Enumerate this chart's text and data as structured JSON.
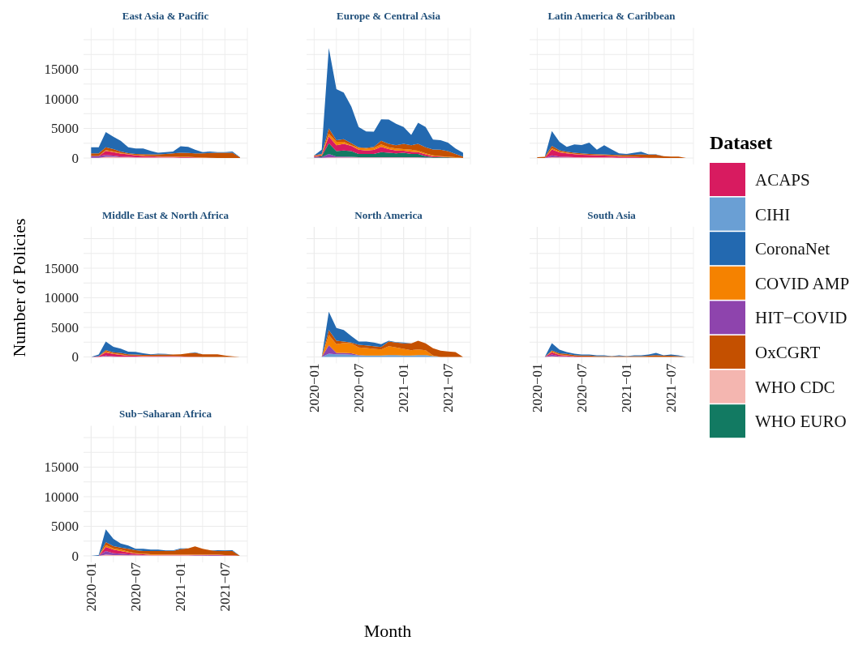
{
  "chart_data": [
    {
      "type": "area",
      "stacked": true,
      "title": "East Asia & Pacific",
      "legend": "right",
      "legend_title": "Dataset",
      "grid": true,
      "tick_labels": "y",
      "x": [
        "2020-01",
        "2020-02",
        "2020-03",
        "2020-04",
        "2020-05",
        "2020-06",
        "2020-07",
        "2020-08",
        "2020-09",
        "2020-10",
        "2020-11",
        "2020-12",
        "2021-01",
        "2021-02",
        "2021-03",
        "2021-04",
        "2021-05",
        "2021-06",
        "2021-07",
        "2021-08",
        "2021-09"
      ],
      "xlim": [
        "2019-12",
        "2021-10"
      ],
      "xticks": [
        {
          "value": "2020-01",
          "label": null
        },
        {
          "value": "2020-04",
          "label": null
        },
        {
          "value": "2020-07",
          "label": null
        },
        {
          "value": "2020-10",
          "label": null
        },
        {
          "value": "2021-01",
          "label": null
        },
        {
          "value": "2021-04",
          "label": null
        },
        {
          "value": "2021-07",
          "label": null
        },
        {
          "value": "2021-10",
          "label": null
        }
      ],
      "ylim": [
        0,
        22000
      ],
      "yticks": [
        0,
        {
          "value": 2500,
          "label": null
        },
        5000,
        {
          "value": 7500,
          "label": null
        },
        10000,
        {
          "value": 12500,
          "label": null
        },
        15000,
        {
          "value": 17500,
          "label": null
        },
        {
          "value": 20000,
          "label": null
        }
      ],
      "series": [
        {
          "name": "WHO CDC",
          "color": "#f4b6b0",
          "values": [
            50,
            50,
            200,
            200,
            150,
            150,
            100,
            100,
            100,
            100,
            100,
            100,
            50,
            50,
            50,
            0,
            0,
            0,
            0,
            0,
            0
          ]
        },
        {
          "name": "HIT−COVID",
          "color": "#8e44ad",
          "values": [
            300,
            300,
            300,
            200,
            100,
            50,
            50,
            0,
            0,
            0,
            0,
            0,
            0,
            0,
            0,
            0,
            0,
            0,
            0,
            0,
            0
          ]
        },
        {
          "name": "ACAPS",
          "color": "#d81b60",
          "values": [
            0,
            0,
            700,
            600,
            500,
            400,
            300,
            250,
            200,
            150,
            100,
            100,
            100,
            100,
            50,
            50,
            50,
            0,
            0,
            0,
            0
          ]
        },
        {
          "name": "COVID AMP",
          "color": "#f58200",
          "values": [
            0,
            0,
            150,
            100,
            100,
            80,
            80,
            80,
            50,
            50,
            50,
            50,
            50,
            50,
            50,
            50,
            0,
            0,
            0,
            0,
            0
          ]
        },
        {
          "name": "OxCGRT",
          "color": "#c45000",
          "values": [
            430,
            430,
            450,
            400,
            250,
            150,
            170,
            220,
            250,
            300,
            450,
            550,
            700,
            650,
            650,
            700,
            800,
            900,
            900,
            900,
            100
          ]
        },
        {
          "name": "CoronaNet",
          "color": "#2369b0",
          "values": [
            1050,
            1050,
            2600,
            2100,
            1800,
            1000,
            900,
            950,
            600,
            300,
            300,
            300,
            1100,
            1050,
            600,
            200,
            250,
            100,
            100,
            200,
            50
          ]
        }
      ]
    },
    {
      "type": "area",
      "stacked": true,
      "title": "Europe & Central Asia",
      "grid": true,
      "tick_labels": false,
      "x": [
        "2020-01",
        "2020-02",
        "2020-03",
        "2020-04",
        "2020-05",
        "2020-06",
        "2020-07",
        "2020-08",
        "2020-09",
        "2020-10",
        "2020-11",
        "2020-12",
        "2021-01",
        "2021-02",
        "2021-03",
        "2021-04",
        "2021-05",
        "2021-06",
        "2021-07",
        "2021-08",
        "2021-09"
      ],
      "xlim": [
        "2019-12",
        "2021-10"
      ],
      "xticks": [
        {
          "value": "2020-01",
          "label": null
        },
        {
          "value": "2020-04",
          "label": null
        },
        {
          "value": "2020-07",
          "label": null
        },
        {
          "value": "2020-10",
          "label": null
        },
        {
          "value": "2021-01",
          "label": null
        },
        {
          "value": "2021-04",
          "label": null
        },
        {
          "value": "2021-07",
          "label": null
        },
        {
          "value": "2021-10",
          "label": null
        }
      ],
      "ylim": [
        0,
        22000
      ],
      "yticks": [
        {
          "value": 0,
          "label": null
        },
        {
          "value": 2500,
          "label": null
        },
        {
          "value": 5000,
          "label": null
        },
        {
          "value": 7500,
          "label": null
        },
        {
          "value": 10000,
          "label": null
        },
        {
          "value": 12500,
          "label": null
        },
        {
          "value": 15000,
          "label": null
        },
        {
          "value": 17500,
          "label": null
        },
        {
          "value": 20000,
          "label": null
        }
      ],
      "series": [
        {
          "name": "WHO CDC",
          "color": "#f4b6b0",
          "values": [
            50,
            50,
            100,
            100,
            100,
            100,
            100,
            100,
            100,
            100,
            100,
            100,
            100,
            100,
            100,
            50,
            50,
            50,
            0,
            0,
            0
          ]
        },
        {
          "name": "HIT−COVID",
          "color": "#8e44ad",
          "values": [
            50,
            100,
            600,
            150,
            130,
            100,
            50,
            50,
            50,
            50,
            50,
            50,
            50,
            50,
            50,
            50,
            0,
            0,
            0,
            0,
            0
          ]
        },
        {
          "name": "WHO EURO",
          "color": "#127a62",
          "values": [
            50,
            150,
            1800,
            900,
            1050,
            950,
            540,
            540,
            540,
            850,
            750,
            630,
            750,
            540,
            540,
            220,
            90,
            90,
            100,
            50,
            0
          ]
        },
        {
          "name": "ACAPS",
          "color": "#d81b60",
          "values": [
            150,
            150,
            1150,
            1000,
            1120,
            900,
            710,
            590,
            680,
            900,
            600,
            500,
            330,
            360,
            310,
            280,
            180,
            90,
            40,
            0,
            0
          ]
        },
        {
          "name": "COVID AMP",
          "color": "#f58200",
          "values": [
            0,
            150,
            450,
            600,
            350,
            100,
            300,
            320,
            330,
            400,
            300,
            320,
            270,
            350,
            250,
            180,
            130,
            90,
            90,
            90,
            0
          ]
        },
        {
          "name": "OxCGRT",
          "color": "#c45000",
          "values": [
            150,
            100,
            900,
            250,
            450,
            350,
            100,
            100,
            200,
            600,
            600,
            550,
            900,
            750,
            1150,
            1020,
            1000,
            1080,
            920,
            560,
            230
          ]
        },
        {
          "name": "CoronaNet",
          "color": "#2369b0",
          "values": [
            0,
            700,
            13600,
            8650,
            7850,
            6200,
            3450,
            2800,
            2550,
            3650,
            4100,
            3650,
            2850,
            1750,
            3550,
            3450,
            1650,
            1600,
            1450,
            900,
            670
          ]
        }
      ]
    },
    {
      "type": "area",
      "stacked": true,
      "title": "Latin America & Caribbean",
      "grid": true,
      "tick_labels": false,
      "x": [
        "2020-01",
        "2020-02",
        "2020-03",
        "2020-04",
        "2020-05",
        "2020-06",
        "2020-07",
        "2020-08",
        "2020-09",
        "2020-10",
        "2020-11",
        "2020-12",
        "2021-01",
        "2021-02",
        "2021-03",
        "2021-04",
        "2021-05",
        "2021-06",
        "2021-07",
        "2021-08",
        "2021-09"
      ],
      "xlim": [
        "2019-12",
        "2021-10"
      ],
      "xticks": [
        {
          "value": "2020-01",
          "label": null
        },
        {
          "value": "2020-04",
          "label": null
        },
        {
          "value": "2020-07",
          "label": null
        },
        {
          "value": "2020-10",
          "label": null
        },
        {
          "value": "2021-01",
          "label": null
        },
        {
          "value": "2021-04",
          "label": null
        },
        {
          "value": "2021-07",
          "label": null
        },
        {
          "value": "2021-10",
          "label": null
        }
      ],
      "ylim": [
        0,
        22000
      ],
      "yticks": [
        {
          "value": 0,
          "label": null
        },
        {
          "value": 2500,
          "label": null
        },
        {
          "value": 5000,
          "label": null
        },
        {
          "value": 7500,
          "label": null
        },
        {
          "value": 10000,
          "label": null
        },
        {
          "value": 12500,
          "label": null
        },
        {
          "value": 15000,
          "label": null
        },
        {
          "value": 17500,
          "label": null
        },
        {
          "value": 20000,
          "label": null
        }
      ],
      "series": [
        {
          "name": "WHO CDC",
          "color": "#f4b6b0",
          "values": [
            0,
            0,
            150,
            100,
            100,
            100,
            100,
            100,
            100,
            100,
            100,
            50,
            50,
            50,
            50,
            0,
            0,
            0,
            0,
            0,
            0
          ]
        },
        {
          "name": "HIT−COVID",
          "color": "#8e44ad",
          "values": [
            0,
            0,
            300,
            150,
            100,
            50,
            0,
            0,
            0,
            0,
            0,
            0,
            0,
            0,
            0,
            0,
            0,
            0,
            0,
            0,
            0
          ]
        },
        {
          "name": "ACAPS",
          "color": "#d81b60",
          "values": [
            0,
            0,
            1000,
            700,
            600,
            500,
            450,
            400,
            350,
            300,
            250,
            200,
            150,
            150,
            100,
            50,
            50,
            0,
            0,
            0,
            0
          ]
        },
        {
          "name": "COVID AMP",
          "color": "#f58200",
          "values": [
            0,
            0,
            200,
            150,
            100,
            80,
            80,
            50,
            50,
            50,
            50,
            50,
            50,
            0,
            0,
            0,
            0,
            0,
            0,
            0,
            0
          ]
        },
        {
          "name": "OxCGRT",
          "color": "#c45000",
          "values": [
            140,
            200,
            400,
            200,
            150,
            150,
            150,
            150,
            150,
            150,
            150,
            200,
            250,
            350,
            450,
            500,
            500,
            320,
            230,
            230,
            0
          ]
        },
        {
          "name": "CoronaNet",
          "color": "#2369b0",
          "values": [
            0,
            0,
            2500,
            1450,
            850,
            1400,
            1400,
            1900,
            750,
            1550,
            900,
            300,
            200,
            350,
            450,
            50,
            50,
            0,
            0,
            0,
            0
          ]
        }
      ]
    },
    {
      "type": "area",
      "stacked": true,
      "title": "Middle East & North Africa",
      "ylabel": "Number of Policies",
      "grid": true,
      "tick_labels": "y",
      "x": [
        "2020-01",
        "2020-02",
        "2020-03",
        "2020-04",
        "2020-05",
        "2020-06",
        "2020-07",
        "2020-08",
        "2020-09",
        "2020-10",
        "2020-11",
        "2020-12",
        "2021-01",
        "2021-02",
        "2021-03",
        "2021-04",
        "2021-05",
        "2021-06",
        "2021-07",
        "2021-08",
        "2021-09"
      ],
      "xlim": [
        "2019-12",
        "2021-10"
      ],
      "xticks": [
        {
          "value": "2020-01",
          "label": null
        },
        {
          "value": "2020-04",
          "label": null
        },
        {
          "value": "2020-07",
          "label": null
        },
        {
          "value": "2020-10",
          "label": null
        },
        {
          "value": "2021-01",
          "label": null
        },
        {
          "value": "2021-04",
          "label": null
        },
        {
          "value": "2021-07",
          "label": null
        },
        {
          "value": "2021-10",
          "label": null
        }
      ],
      "ylim": [
        0,
        22000
      ],
      "yticks": [
        0,
        {
          "value": 2500,
          "label": null
        },
        5000,
        {
          "value": 7500,
          "label": null
        },
        10000,
        {
          "value": 12500,
          "label": null
        },
        15000,
        {
          "value": 17500,
          "label": null
        },
        {
          "value": 20000,
          "label": null
        }
      ],
      "series": [
        {
          "name": "WHO CDC",
          "color": "#f4b6b0",
          "values": [
            0,
            0,
            100,
            50,
            50,
            50,
            50,
            50,
            50,
            50,
            50,
            50,
            50,
            0,
            0,
            0,
            0,
            0,
            0,
            0,
            0
          ]
        },
        {
          "name": "HIT−COVID",
          "color": "#8e44ad",
          "values": [
            0,
            0,
            150,
            50,
            0,
            0,
            0,
            0,
            0,
            0,
            0,
            0,
            0,
            0,
            0,
            0,
            0,
            0,
            0,
            0,
            0
          ]
        },
        {
          "name": "ACAPS",
          "color": "#d81b60",
          "values": [
            0,
            100,
            500,
            400,
            300,
            150,
            150,
            100,
            100,
            100,
            100,
            100,
            50,
            50,
            50,
            0,
            0,
            0,
            0,
            0,
            0
          ]
        },
        {
          "name": "COVID AMP",
          "color": "#f58200",
          "values": [
            0,
            0,
            200,
            100,
            100,
            50,
            50,
            50,
            0,
            0,
            0,
            0,
            0,
            0,
            0,
            0,
            0,
            0,
            0,
            0,
            0
          ]
        },
        {
          "name": "OxCGRT",
          "color": "#c45000",
          "values": [
            0,
            50,
            200,
            200,
            250,
            200,
            150,
            150,
            200,
            250,
            250,
            250,
            350,
            550,
            650,
            450,
            450,
            450,
            230,
            90,
            0
          ]
        },
        {
          "name": "CoronaNet",
          "color": "#2369b0",
          "values": [
            0,
            270,
            1450,
            900,
            700,
            450,
            450,
            250,
            100,
            150,
            100,
            0,
            0,
            0,
            100,
            0,
            0,
            0,
            0,
            0,
            0
          ]
        }
      ]
    },
    {
      "type": "area",
      "stacked": true,
      "title": "North America",
      "xlabel": "Month",
      "grid": true,
      "tick_labels": "x",
      "x": [
        "2020-01",
        "2020-02",
        "2020-03",
        "2020-04",
        "2020-05",
        "2020-06",
        "2020-07",
        "2020-08",
        "2020-09",
        "2020-10",
        "2020-11",
        "2020-12",
        "2021-01",
        "2021-02",
        "2021-03",
        "2021-04",
        "2021-05",
        "2021-06",
        "2021-07",
        "2021-08",
        "2021-09"
      ],
      "xlim": [
        "2019-12",
        "2021-10"
      ],
      "xticks": [
        {
          "value": "2020-01",
          "label": "2020−01"
        },
        {
          "value": "2020-04",
          "label": null
        },
        {
          "value": "2020-07",
          "label": "2020−07"
        },
        {
          "value": "2020-10",
          "label": null
        },
        {
          "value": "2021-01",
          "label": "2021−01"
        },
        {
          "value": "2021-04",
          "label": null
        },
        {
          "value": "2021-07",
          "label": "2021−07"
        },
        {
          "value": "2021-10",
          "label": null
        }
      ],
      "ylim": [
        0,
        22000
      ],
      "yticks": [
        {
          "value": 0,
          "label": null
        },
        {
          "value": 2500,
          "label": null
        },
        {
          "value": 5000,
          "label": null
        },
        {
          "value": 7500,
          "label": null
        },
        {
          "value": 10000,
          "label": null
        },
        {
          "value": 12500,
          "label": null
        },
        {
          "value": 15000,
          "label": null
        },
        {
          "value": 17500,
          "label": null
        },
        {
          "value": 20000,
          "label": null
        }
      ],
      "series": [
        {
          "name": "CIHI",
          "color": "#6a9fd4",
          "values": [
            0,
            0,
            550,
            460,
            460,
            370,
            230,
            230,
            230,
            230,
            320,
            320,
            230,
            230,
            320,
            320,
            140,
            0,
            0,
            0,
            0
          ]
        },
        {
          "name": "HIT−COVID",
          "color": "#8e44ad",
          "values": [
            0,
            0,
            1420,
            230,
            230,
            230,
            90,
            0,
            0,
            0,
            0,
            0,
            0,
            0,
            0,
            0,
            0,
            0,
            0,
            0,
            0
          ]
        },
        {
          "name": "COVID AMP",
          "color": "#f58200",
          "values": [
            0,
            0,
            1780,
            1460,
            1690,
            1680,
            1280,
            1280,
            1140,
            1050,
            1510,
            1280,
            1140,
            910,
            960,
            820,
            90,
            0,
            0,
            0,
            0
          ]
        },
        {
          "name": "OxCGRT",
          "color": "#c45000",
          "values": [
            0,
            0,
            820,
            590,
            220,
            140,
            450,
            450,
            460,
            410,
            770,
            820,
            910,
            1140,
            1460,
            1140,
            1230,
            1050,
            910,
            820,
            0
          ]
        },
        {
          "name": "CoronaNet",
          "color": "#2369b0",
          "values": [
            0,
            0,
            3060,
            2160,
            1970,
            1100,
            550,
            640,
            590,
            460,
            140,
            80,
            140,
            0,
            0,
            0,
            0,
            0,
            0,
            0,
            0
          ]
        }
      ]
    },
    {
      "type": "area",
      "stacked": true,
      "title": "South Asia",
      "grid": true,
      "tick_labels": "x",
      "x": [
        "2020-01",
        "2020-02",
        "2020-03",
        "2020-04",
        "2020-05",
        "2020-06",
        "2020-07",
        "2020-08",
        "2020-09",
        "2020-10",
        "2020-11",
        "2020-12",
        "2021-01",
        "2021-02",
        "2021-03",
        "2021-04",
        "2021-05",
        "2021-06",
        "2021-07",
        "2021-08",
        "2021-09"
      ],
      "xlim": [
        "2019-12",
        "2021-10"
      ],
      "xticks": [
        {
          "value": "2020-01",
          "label": "2020−01"
        },
        {
          "value": "2020-04",
          "label": null
        },
        {
          "value": "2020-07",
          "label": "2020−07"
        },
        {
          "value": "2020-10",
          "label": null
        },
        {
          "value": "2021-01",
          "label": "2021−01"
        },
        {
          "value": "2021-04",
          "label": null
        },
        {
          "value": "2021-07",
          "label": "2021−07"
        },
        {
          "value": "2021-10",
          "label": null
        }
      ],
      "ylim": [
        0,
        22000
      ],
      "yticks": [
        {
          "value": 0,
          "label": null
        },
        {
          "value": 2500,
          "label": null
        },
        {
          "value": 5000,
          "label": null
        },
        {
          "value": 7500,
          "label": null
        },
        {
          "value": 10000,
          "label": null
        },
        {
          "value": 12500,
          "label": null
        },
        {
          "value": 15000,
          "label": null
        },
        {
          "value": 17500,
          "label": null
        },
        {
          "value": 20000,
          "label": null
        }
      ],
      "series": [
        {
          "name": "WHO CDC",
          "color": "#f4b6b0",
          "values": [
            0,
            0,
            100,
            50,
            50,
            0,
            0,
            0,
            0,
            0,
            0,
            0,
            0,
            0,
            0,
            0,
            0,
            0,
            0,
            0,
            0
          ]
        },
        {
          "name": "HIT−COVID",
          "color": "#8e44ad",
          "values": [
            0,
            0,
            300,
            100,
            50,
            0,
            0,
            0,
            0,
            0,
            0,
            0,
            0,
            0,
            0,
            0,
            0,
            0,
            0,
            0,
            0
          ]
        },
        {
          "name": "ACAPS",
          "color": "#d81b60",
          "values": [
            0,
            0,
            400,
            200,
            150,
            100,
            50,
            50,
            0,
            0,
            0,
            0,
            0,
            0,
            0,
            0,
            0,
            0,
            0,
            0,
            0
          ]
        },
        {
          "name": "COVID AMP",
          "color": "#f58200",
          "values": [
            0,
            0,
            150,
            50,
            50,
            0,
            0,
            0,
            0,
            0,
            0,
            0,
            0,
            0,
            0,
            0,
            0,
            0,
            0,
            0,
            0
          ]
        },
        {
          "name": "OxCGRT",
          "color": "#c45000",
          "values": [
            0,
            0,
            150,
            200,
            200,
            200,
            200,
            200,
            150,
            150,
            100,
            150,
            100,
            150,
            150,
            200,
            300,
            200,
            200,
            150,
            0
          ]
        },
        {
          "name": "CoronaNet",
          "color": "#2369b0",
          "values": [
            0,
            0,
            1230,
            630,
            320,
            250,
            160,
            160,
            120,
            120,
            40,
            120,
            40,
            120,
            120,
            210,
            390,
            70,
            210,
            120,
            0
          ]
        }
      ]
    },
    {
      "type": "area",
      "stacked": true,
      "title": "Sub−Saharan Africa",
      "grid": true,
      "x": [
        "2020-01",
        "2020-02",
        "2020-03",
        "2020-04",
        "2020-05",
        "2020-06",
        "2020-07",
        "2020-08",
        "2020-09",
        "2020-10",
        "2020-11",
        "2020-12",
        "2021-01",
        "2021-02",
        "2021-03",
        "2021-04",
        "2021-05",
        "2021-06",
        "2021-07",
        "2021-08",
        "2021-09"
      ],
      "xlim": [
        "2019-12",
        "2021-10"
      ],
      "xticks": [
        {
          "value": "2020-01",
          "label": "2020−01"
        },
        {
          "value": "2020-04",
          "label": null
        },
        {
          "value": "2020-07",
          "label": "2020−07"
        },
        {
          "value": "2020-10",
          "label": null
        },
        {
          "value": "2021-01",
          "label": "2021−01"
        },
        {
          "value": "2021-04",
          "label": null
        },
        {
          "value": "2021-07",
          "label": "2021−07"
        },
        {
          "value": "2021-10",
          "label": null
        }
      ],
      "ylim": [
        0,
        22000
      ],
      "yticks": [
        0,
        {
          "value": 2500,
          "label": null
        },
        5000,
        {
          "value": 7500,
          "label": null
        },
        10000,
        {
          "value": 12500,
          "label": null
        },
        15000,
        {
          "value": 17500,
          "label": null
        },
        {
          "value": 20000,
          "label": null
        }
      ],
      "series": [
        {
          "name": "WHO CDC",
          "color": "#f4b6b0",
          "values": [
            0,
            0,
            200,
            150,
            150,
            100,
            100,
            100,
            90,
            90,
            90,
            90,
            90,
            90,
            50,
            50,
            0,
            0,
            0,
            0,
            0
          ]
        },
        {
          "name": "HIT−COVID",
          "color": "#8e44ad",
          "values": [
            0,
            0,
            620,
            310,
            220,
            170,
            80,
            40,
            0,
            0,
            0,
            0,
            0,
            0,
            40,
            40,
            90,
            90,
            50,
            50,
            0
          ]
        },
        {
          "name": "ACAPS",
          "color": "#d81b60",
          "values": [
            0,
            0,
            690,
            590,
            450,
            320,
            190,
            130,
            90,
            90,
            90,
            90,
            90,
            90,
            90,
            90,
            90,
            90,
            50,
            50,
            0
          ]
        },
        {
          "name": "COVID AMP",
          "color": "#f58200",
          "values": [
            0,
            0,
            320,
            230,
            230,
            140,
            90,
            100,
            90,
            90,
            50,
            50,
            50,
            50,
            50,
            50,
            50,
            50,
            50,
            50,
            0
          ]
        },
        {
          "name": "OxCGRT",
          "color": "#c45000",
          "values": [
            0,
            0,
            500,
            370,
            370,
            460,
            500,
            450,
            550,
            550,
            590,
            590,
            910,
            1050,
            1370,
            960,
            730,
            590,
            670,
            670,
            0
          ]
        },
        {
          "name": "CoronaNet",
          "color": "#2369b0",
          "values": [
            0,
            140,
            2150,
            1230,
            680,
            550,
            230,
            370,
            230,
            230,
            90,
            90,
            140,
            0,
            0,
            0,
            0,
            140,
            90,
            140,
            0
          ]
        }
      ]
    }
  ]
}
